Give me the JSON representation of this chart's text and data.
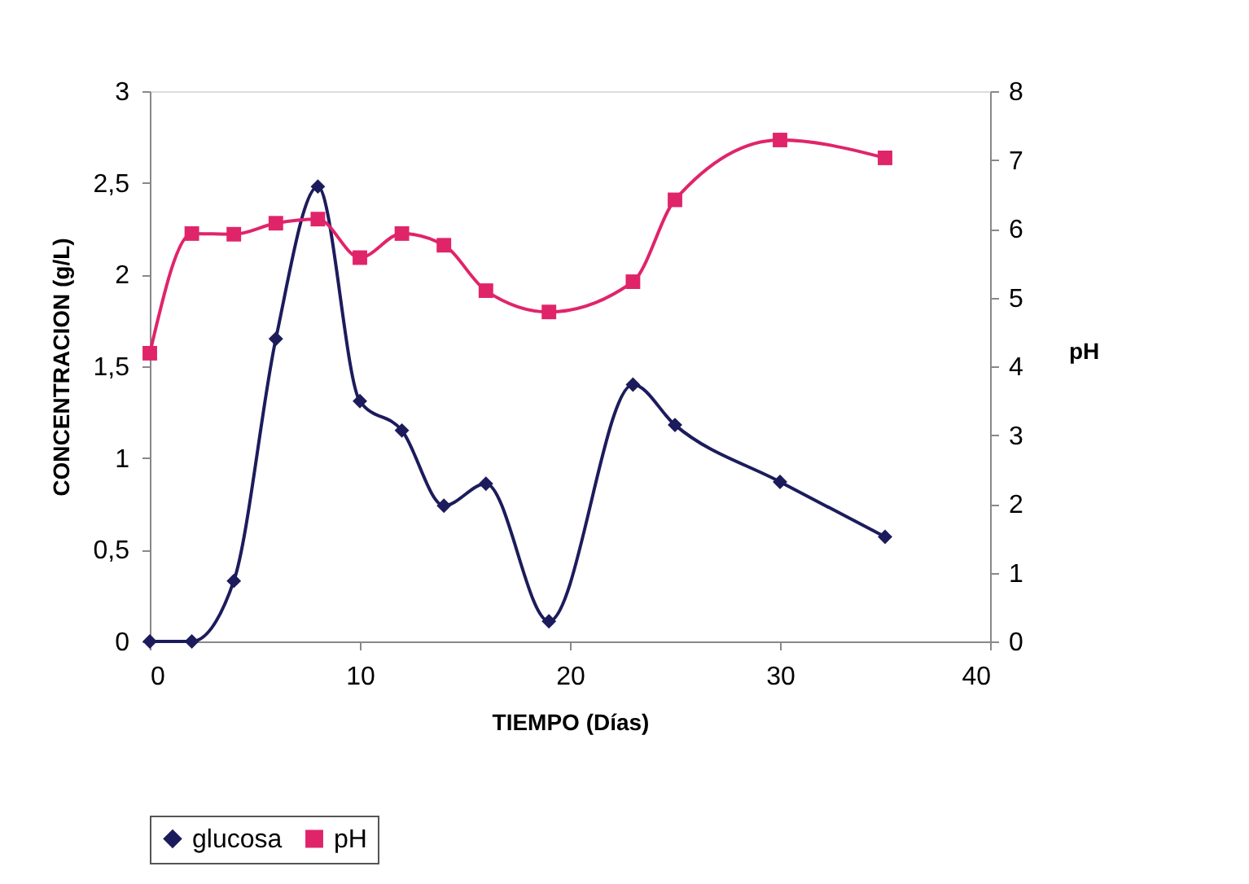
{
  "chart_data": {
    "type": "line",
    "xlabel": "TIEMPO (Días)",
    "ylabel": "CONCENTRACION (g/L)",
    "y2label": "pH",
    "x": [
      0,
      2,
      4,
      6,
      8,
      10,
      12,
      14,
      16,
      19,
      23,
      25,
      30,
      35
    ],
    "series": [
      {
        "name": "glucosa",
        "color": "#1c1c5c",
        "marker": "diamond",
        "values": [
          0,
          0,
          0.33,
          1.65,
          2.48,
          1.31,
          1.15,
          0.74,
          0.86,
          0.11,
          1.4,
          1.18,
          0.87,
          0.57
        ]
      },
      {
        "name": "pH",
        "color": "#e0246a",
        "marker": "square",
        "axis": "y2",
        "values": [
          4.19,
          5.93,
          5.92,
          6.08,
          6.14,
          5.58,
          5.93,
          5.76,
          5.1,
          4.79,
          5.23,
          6.42,
          7.29,
          7.03
        ]
      }
    ],
    "xlim": [
      0,
      40
    ],
    "xticks": [
      0,
      10,
      20,
      30,
      40
    ],
    "ylim": [
      0,
      3
    ],
    "yticks": [
      0,
      {
        "value": 0.5,
        "label": "0,5"
      },
      1,
      {
        "value": 1.5,
        "label": "1,5"
      },
      2,
      {
        "value": 2.5,
        "label": "2,5"
      },
      3
    ],
    "y2lim": [
      0,
      8
    ],
    "y2ticks": [
      0,
      1,
      2,
      3,
      4,
      5,
      6,
      7,
      8
    ],
    "legend": "bottom",
    "grid": false,
    "line_style": "solid"
  }
}
